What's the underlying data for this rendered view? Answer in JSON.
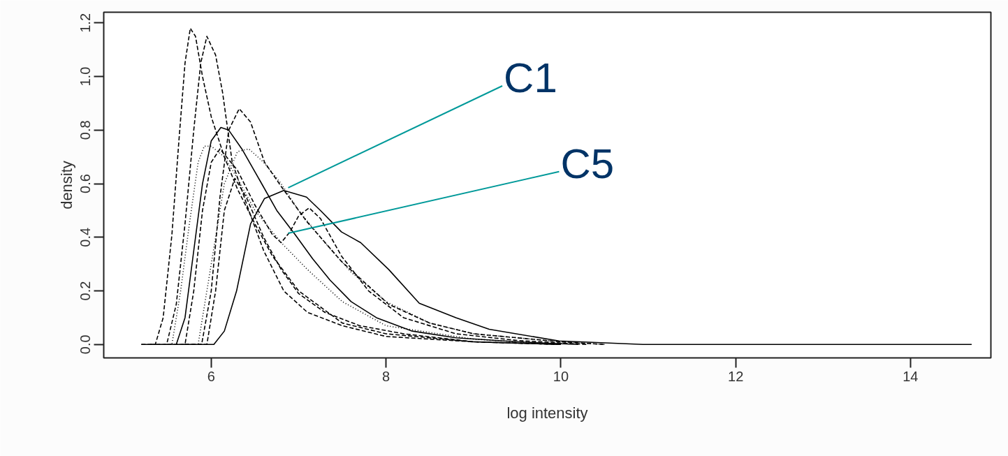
{
  "chart_data": {
    "type": "line",
    "xlabel": "log intensity",
    "ylabel": "density",
    "xlim": [
      4.77,
      14.92
    ],
    "ylim": [
      -0.05,
      1.24
    ],
    "xticks": [
      6,
      8,
      10,
      12,
      14
    ],
    "yticks": [
      {
        "value": 0,
        "label": "0.0"
      },
      {
        "value": 0.2,
        "label": "0.2"
      },
      {
        "value": 0.4,
        "label": "0.4"
      },
      {
        "value": 0.6,
        "label": "0.6"
      },
      {
        "value": 0.8,
        "label": "0.8"
      },
      {
        "value": 1.0,
        "label": "1.0"
      },
      {
        "value": 1.2,
        "label": "1.2"
      }
    ],
    "grid": false,
    "marker": "none",
    "series": [
      {
        "color": "#000000",
        "line_style": "dashed",
        "x": [
          5.2,
          5.36,
          5.45,
          5.55,
          5.63,
          5.7,
          5.76,
          5.82,
          5.9,
          6.0,
          6.15,
          6.3,
          6.5,
          6.7,
          7.0,
          7.5,
          8.0,
          9.0,
          10.0
        ],
        "values": [
          0,
          0,
          0.1,
          0.41,
          0.76,
          1.05,
          1.18,
          1.15,
          1.0,
          0.85,
          0.7,
          0.58,
          0.45,
          0.33,
          0.2,
          0.08,
          0.04,
          0.01,
          0
        ]
      },
      {
        "color": "#000000",
        "line_style": "dashed",
        "x": [
          5.3,
          5.49,
          5.6,
          5.7,
          5.8,
          5.88,
          5.95,
          6.05,
          6.13,
          6.24,
          6.43,
          6.6,
          6.83,
          7.1,
          7.5,
          8,
          9,
          10
        ],
        "values": [
          0,
          0,
          0.15,
          0.45,
          0.8,
          1.05,
          1.15,
          1.08,
          0.94,
          0.68,
          0.5,
          0.35,
          0.2,
          0.12,
          0.07,
          0.03,
          0.01,
          0
        ]
      },
      {
        "color": "#000000",
        "line_style": "dotted",
        "x": [
          5.4,
          5.55,
          5.65,
          5.75,
          5.85,
          5.92,
          6.0,
          6.15,
          6.3,
          6.5,
          6.8,
          7.1,
          7.5,
          8,
          9,
          10
        ],
        "values": [
          0,
          0,
          0.2,
          0.45,
          0.68,
          0.74,
          0.74,
          0.7,
          0.62,
          0.5,
          0.38,
          0.28,
          0.16,
          0.07,
          0.02,
          0
        ]
      },
      {
        "color": "#000000",
        "line_style": "solid",
        "x": [
          5.2,
          5.6,
          5.7,
          5.8,
          5.9,
          6.0,
          6.11,
          6.2,
          6.35,
          6.56,
          6.75,
          6.96,
          7.16,
          7.36,
          7.6,
          7.89,
          8.3,
          8.8,
          9.5,
          10.2
        ],
        "values": [
          0,
          0,
          0.1,
          0.35,
          0.6,
          0.76,
          0.81,
          0.8,
          0.73,
          0.61,
          0.5,
          0.41,
          0.32,
          0.24,
          0.16,
          0.1,
          0.05,
          0.025,
          0.01,
          0
        ]
      },
      {
        "color": "#000000",
        "line_style": "dashed",
        "x": [
          5.7,
          5.89,
          6.0,
          6.1,
          6.2,
          6.32,
          6.45,
          6.61,
          6.8,
          7.09,
          7.49,
          8.03,
          8.5,
          9,
          10,
          10.5
        ],
        "values": [
          0,
          0,
          0.2,
          0.55,
          0.8,
          0.88,
          0.83,
          0.68,
          0.59,
          0.46,
          0.31,
          0.15,
          0.08,
          0.04,
          0.01,
          0
        ]
      },
      {
        "color": "#000000",
        "line_style": "solid",
        "x": [
          5.6,
          6.03,
          6.15,
          6.29,
          6.45,
          6.61,
          6.83,
          7.09,
          7.25,
          7.49,
          7.71,
          8.03,
          8.38,
          8.8,
          9.18,
          9.98,
          10.94,
          14.7
        ],
        "values": [
          0,
          0,
          0.05,
          0.2,
          0.45,
          0.545,
          0.575,
          0.55,
          0.5,
          0.42,
          0.38,
          0.28,
          0.154,
          0.1,
          0.057,
          0.013,
          0,
          0
        ]
      },
      {
        "color": "#000000",
        "line_style": "dashed",
        "x": [
          5.5,
          5.7,
          5.8,
          5.9,
          6.0,
          6.1,
          6.3,
          6.5,
          6.7,
          6.8,
          6.9,
          7.0,
          7.12,
          7.25,
          7.49,
          7.8,
          8.2,
          8.8,
          9.5,
          10.3
        ],
        "values": [
          0,
          0,
          0.2,
          0.5,
          0.68,
          0.73,
          0.65,
          0.52,
          0.41,
          0.38,
          0.42,
          0.48,
          0.51,
          0.47,
          0.33,
          0.2,
          0.1,
          0.04,
          0.015,
          0
        ]
      },
      {
        "color": "#000000",
        "line_style": "dashed",
        "x": [
          5.7,
          5.95,
          6.05,
          6.15,
          6.27,
          6.4,
          6.6,
          6.8,
          7.0,
          7.3,
          7.7,
          8.2,
          9,
          10
        ],
        "values": [
          0,
          0,
          0.2,
          0.5,
          0.62,
          0.55,
          0.4,
          0.28,
          0.19,
          0.12,
          0.07,
          0.04,
          0.01,
          0
        ]
      },
      {
        "color": "#000000",
        "line_style": "dotted",
        "x": [
          5.6,
          5.85,
          6.0,
          6.15,
          6.3,
          6.43,
          6.6,
          6.8,
          7.0,
          7.3,
          7.6,
          8.0,
          8.5,
          9,
          10,
          10.5
        ],
        "values": [
          0,
          0,
          0.3,
          0.6,
          0.72,
          0.73,
          0.68,
          0.6,
          0.5,
          0.38,
          0.27,
          0.16,
          0.08,
          0.04,
          0.01,
          0
        ]
      }
    ],
    "annotations": [
      {
        "text": "C1",
        "x": 6.88,
        "y": 0.585
      },
      {
        "text": "C5",
        "x": 6.88,
        "y": 0.415
      }
    ]
  }
}
